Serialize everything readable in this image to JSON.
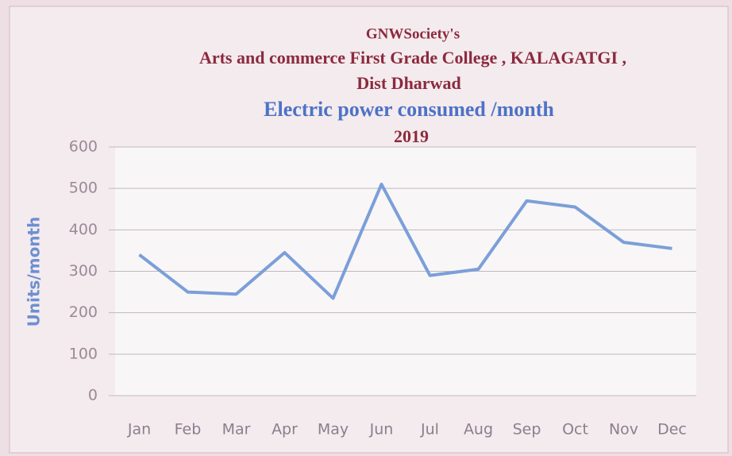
{
  "chart_data": {
    "type": "line",
    "header": [
      "GNWSociety's",
      "Arts and commerce First Grade College  , KALAGATGI ,",
      "Dist Dharwad"
    ],
    "title": "Electric power consumed /month",
    "subtitle": "2019",
    "y_label": "Units/month",
    "categories": [
      "Jan",
      "Feb",
      "Mar",
      "Apr",
      "May",
      "Jun",
      "Jul",
      "Aug",
      "Sep",
      "Oct",
      "Nov",
      "Dec"
    ],
    "series": [
      {
        "name": "Units/month",
        "color": "#7b9fd8",
        "values": [
          340,
          250,
          245,
          345,
          235,
          510,
          290,
          305,
          470,
          455,
          370,
          355
        ]
      }
    ],
    "ylim": [
      0,
      600
    ],
    "yticks": [
      0,
      100,
      200,
      300,
      400,
      500,
      600
    ],
    "grid": true
  }
}
